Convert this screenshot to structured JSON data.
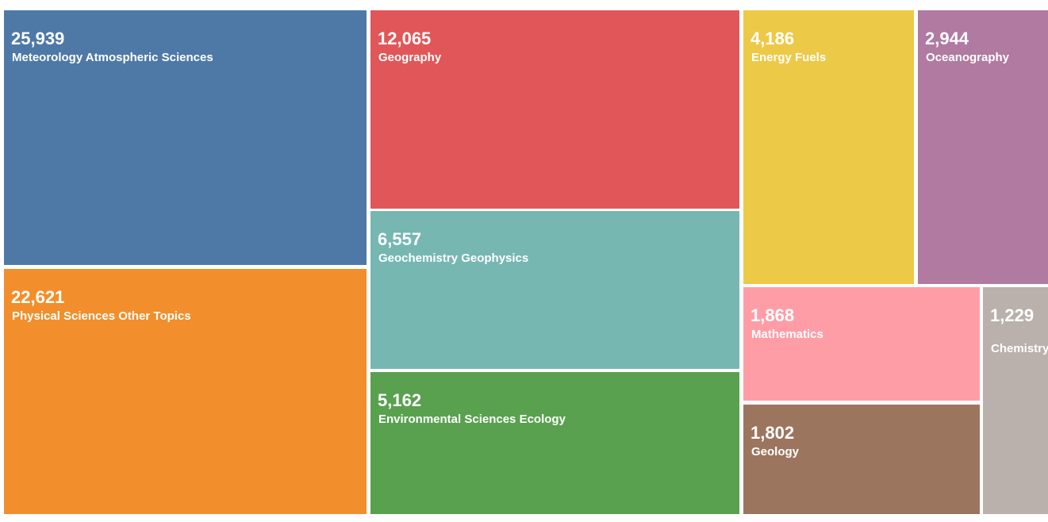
{
  "chart_data": {
    "type": "treemap",
    "title": "",
    "items": [
      {
        "label": "Meteorology Atmospheric Sciences",
        "display": "25,939",
        "value": 25939,
        "color": "#4e79a7"
      },
      {
        "label": "Physical Sciences Other Topics",
        "display": "22,621",
        "value": 22621,
        "color": "#f28e2b"
      },
      {
        "label": "Geography",
        "display": "12,065",
        "value": 12065,
        "color": "#e15759"
      },
      {
        "label": "Geochemistry Geophysics",
        "display": "6,557",
        "value": 6557,
        "color": "#76b7b2"
      },
      {
        "label": "Environmental Sciences Ecology",
        "display": "5,162",
        "value": 5162,
        "color": "#59a14f"
      },
      {
        "label": "Energy Fuels",
        "display": "4,186",
        "value": 4186,
        "color": "#edc948"
      },
      {
        "label": "Oceanography",
        "display": "2,944",
        "value": 2944,
        "color": "#b07aa1"
      },
      {
        "label": "Mathematics",
        "display": "1,868",
        "value": 1868,
        "color": "#ff9da7"
      },
      {
        "label": "Geology",
        "display": "1,802",
        "value": 1802,
        "color": "#9c755f"
      },
      {
        "label": "Chemistry",
        "display": "1,229",
        "value": 1229,
        "color": "#bab0ac"
      }
    ]
  }
}
